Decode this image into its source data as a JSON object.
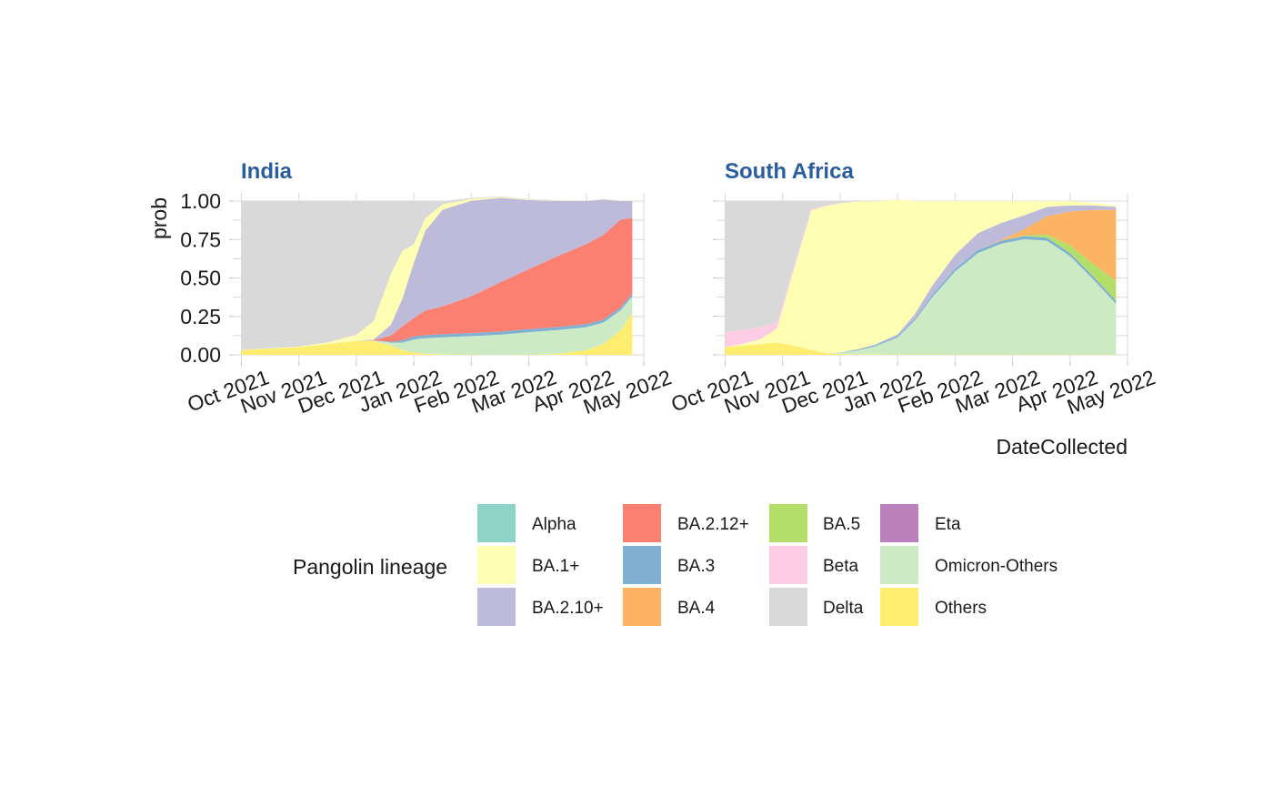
{
  "colors": {
    "Alpha": "#8DD3C7",
    "BA.1+": "#FFFFB3",
    "BA.2.10+": "#BEBADA",
    "BA.2.12+": "#FB8072",
    "BA.3": "#80B1D3",
    "BA.4": "#FDB462",
    "BA.5": "#B3DE69",
    "Beta": "#FCCDE5",
    "Delta": "#D9D9D9",
    "Eta": "#BC80BD",
    "Omicron-Others": "#CCEBC5",
    "Others": "#FFED6F",
    "title": "#2A5D9F"
  },
  "chart_data": {
    "type": "area",
    "ylabel": "prob",
    "xlabel": "DateCollected",
    "ylim": [
      0,
      1
    ],
    "yticks": [
      "0.00",
      "0.25",
      "0.50",
      "0.75",
      "1.00"
    ],
    "xticks": [
      "Oct 2021",
      "Nov 2021",
      "Dec 2021",
      "Jan 2022",
      "Feb 2022",
      "Mar 2022",
      "Apr 2022",
      "May 2022"
    ],
    "xlim_months": [
      -0.15,
      7.0
    ],
    "legend": {
      "title": "Pangolin lineage",
      "position": "bottom",
      "entries": [
        "Alpha",
        "BA.1+",
        "BA.2.10+",
        "BA.2.12+",
        "BA.3",
        "BA.4",
        "BA.5",
        "Beta",
        "Delta",
        "Eta",
        "Omicron-Others",
        "Others"
      ]
    },
    "facets": [
      {
        "title": "India",
        "x": [
          0.0,
          1.0,
          1.5,
          2.0,
          2.3,
          2.6,
          2.8,
          3.0,
          3.2,
          3.5,
          4.0,
          4.5,
          5.0,
          5.5,
          6.0,
          6.3,
          6.6,
          6.8
        ],
        "series": [
          {
            "name": "Others",
            "values": [
              0.03,
              0.05,
              0.07,
              0.09,
              0.09,
              0.06,
              0.03,
              0.015,
              0.008,
              0.004,
              0.002,
              0.001,
              0.002,
              0.006,
              0.03,
              0.07,
              0.16,
              0.27
            ]
          },
          {
            "name": "Omicron-Others",
            "values": [
              0.0,
              0.0,
              0.0,
              0.0,
              0.003,
              0.02,
              0.05,
              0.085,
              0.1,
              0.11,
              0.12,
              0.13,
              0.145,
              0.155,
              0.15,
              0.14,
              0.13,
              0.11
            ]
          },
          {
            "name": "BA.3",
            "values": [
              0.0,
              0.0,
              0.0,
              0.0,
              0.001,
              0.005,
              0.015,
              0.02,
              0.02,
              0.02,
              0.02,
              0.02,
              0.02,
              0.02,
              0.02,
              0.02,
              0.02,
              0.02
            ]
          },
          {
            "name": "BA.2.12+",
            "values": [
              0.0,
              0.0,
              0.0,
              0.0,
              0.002,
              0.04,
              0.09,
              0.12,
              0.16,
              0.18,
              0.24,
              0.32,
              0.39,
              0.46,
              0.52,
              0.55,
              0.57,
              0.49
            ]
          },
          {
            "name": "BA.2.10+",
            "values": [
              0.0,
              0.0,
              0.0,
              0.0,
              0.004,
              0.07,
              0.18,
              0.36,
              0.52,
              0.63,
              0.62,
              0.55,
              0.45,
              0.36,
              0.28,
              0.23,
              0.12,
              0.11
            ]
          },
          {
            "name": "BA.1+",
            "values": [
              0.002,
              0.004,
              0.01,
              0.04,
              0.12,
              0.33,
              0.31,
              0.12,
              0.08,
              0.035,
              0.012,
              0.005,
              0.003,
              0.002,
              0.001,
              0.001,
              0.001,
              0.001
            ]
          },
          {
            "name": "Delta",
            "values": [
              0.968,
              0.946,
              0.92,
              0.87,
              0.781,
              0.475,
              0.325,
              0.28,
              0.112,
              0.021,
              0.006,
              0.004,
              0.003,
              0.002,
              0.001,
              0.001,
              0.001,
              0.001
            ]
          }
        ]
      },
      {
        "title": "South Africa",
        "x": [
          0.0,
          0.3,
          0.6,
          0.9,
          1.2,
          1.5,
          1.8,
          2.0,
          2.3,
          2.6,
          3.0,
          3.3,
          3.6,
          4.0,
          4.4,
          4.8,
          5.2,
          5.6,
          6.0,
          6.4,
          6.8
        ],
        "series": [
          {
            "name": "Others",
            "values": [
              0.05,
              0.06,
              0.07,
              0.08,
              0.06,
              0.03,
              0.01,
              0.005,
              0.004,
              0.004,
              0.003,
              0.003,
              0.003,
              0.002,
              0.002,
              0.002,
              0.002,
              0.002,
              0.002,
              0.002,
              0.002
            ]
          },
          {
            "name": "Omicron-Others",
            "values": [
              0.0,
              0.0,
              0.0,
              0.0,
              0.0,
              0.0,
              0.002,
              0.008,
              0.025,
              0.05,
              0.11,
              0.22,
              0.37,
              0.54,
              0.66,
              0.72,
              0.75,
              0.74,
              0.64,
              0.49,
              0.33
            ]
          },
          {
            "name": "BA.3",
            "values": [
              0.0,
              0.0,
              0.0,
              0.0,
              0.0,
              0.0,
              0.0,
              0.002,
              0.006,
              0.008,
              0.01,
              0.012,
              0.015,
              0.018,
              0.02,
              0.02,
              0.02,
              0.02,
              0.02,
              0.02,
              0.02
            ]
          },
          {
            "name": "BA.5",
            "values": [
              0.0,
              0.0,
              0.0,
              0.0,
              0.0,
              0.0,
              0.0,
              0.0,
              0.0,
              0.0,
              0.0,
              0.0,
              0.0,
              0.0,
              0.0,
              0.0,
              0.005,
              0.02,
              0.05,
              0.08,
              0.13
            ]
          },
          {
            "name": "BA.4",
            "values": [
              0.0,
              0.0,
              0.0,
              0.0,
              0.0,
              0.0,
              0.0,
              0.0,
              0.0,
              0.0,
              0.0,
              0.0,
              0.0,
              0.0,
              0.0,
              0.005,
              0.04,
              0.12,
              0.22,
              0.35,
              0.46
            ]
          },
          {
            "name": "BA.2.10+",
            "values": [
              0.0,
              0.0,
              0.0,
              0.0,
              0.0,
              0.0,
              0.0,
              0.0,
              0.001,
              0.004,
              0.01,
              0.03,
              0.06,
              0.09,
              0.11,
              0.11,
              0.09,
              0.06,
              0.04,
              0.03,
              0.02
            ]
          },
          {
            "name": "BA.1+",
            "values": [
              0.0,
              0.01,
              0.03,
              0.09,
              0.5,
              0.91,
              0.96,
              0.97,
              0.962,
              0.932,
              0.875,
              0.735,
              0.552,
              0.35,
              0.208,
              0.143,
              0.093,
              0.038,
              0.028,
              0.018,
              0.008
            ]
          },
          {
            "name": "Beta",
            "values": [
              0.1,
              0.09,
              0.08,
              0.04,
              0.02,
              0.01,
              0.005,
              0.002,
              0.001,
              0.001,
              0.001,
              0.0,
              0.0,
              0.0,
              0.0,
              0.0,
              0.0,
              0.0,
              0.0,
              0.0,
              0.0
            ]
          },
          {
            "name": "Delta",
            "values": [
              0.85,
              0.84,
              0.82,
              0.79,
              0.42,
              0.05,
              0.023,
              0.013,
              0.006,
              0.001,
              0.001,
              0.0,
              0.0,
              0.0,
              0.0,
              0.0,
              0.0,
              0.0,
              0.0,
              0.0,
              0.0
            ]
          }
        ]
      }
    ]
  }
}
